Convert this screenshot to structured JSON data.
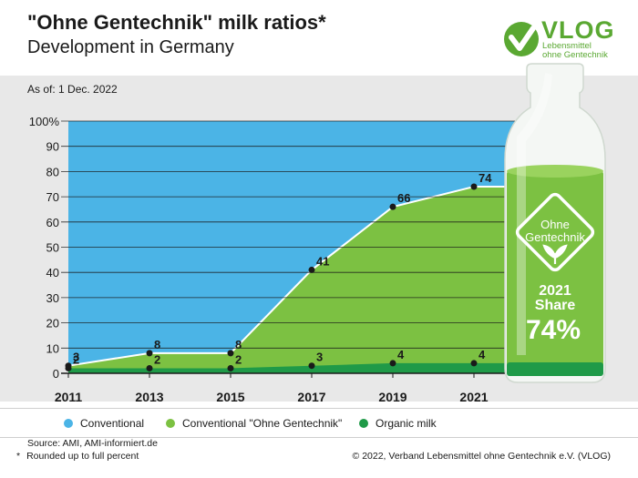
{
  "header": {
    "title": "\"Ohne Gentechnik\" milk ratios*",
    "subtitle": "Development in Germany",
    "as_of": "As of: 1 Dec. 2022"
  },
  "logo": {
    "name": "VLOG",
    "tagline_1": "Lebensmittel",
    "tagline_2": "ohne Gentechnik",
    "color": "#5aa832"
  },
  "bottle": {
    "seal_line_1": "Ohne",
    "seal_line_2": "Gentechnik",
    "year": "2021",
    "share_label": "Share",
    "share_value": "74%"
  },
  "legend": [
    {
      "label": "Conventional",
      "color": "#4bb4e6"
    },
    {
      "label": "Conventional \"Ohne Gentechnik\"",
      "color": "#7cc142"
    },
    {
      "label": "Organic milk",
      "color": "#1f9a48"
    }
  ],
  "footer": {
    "source": "Source: AMI, AMI-informiert.de",
    "note_marker": "*",
    "note": "Rounded up to full percent",
    "copyright": "© 2022, Verband Lebensmittel ohne Gentechnik e.V. (VLOG)"
  },
  "chart_data": {
    "type": "area",
    "x": [
      2011,
      2013,
      2015,
      2017,
      2019,
      2021
    ],
    "series": [
      {
        "name": "Conventional \"Ohne Gentechnik\"",
        "values": [
          3,
          8,
          8,
          41,
          66,
          74
        ],
        "color": "#7cc142"
      },
      {
        "name": "Organic milk",
        "values": [
          2,
          2,
          2,
          3,
          4,
          4
        ],
        "color": "#1f9a48"
      }
    ],
    "y_ticks": [
      "100%",
      "90",
      "80",
      "70",
      "60",
      "50",
      "40",
      "30",
      "20",
      "10",
      "0"
    ],
    "ylim": [
      0,
      100
    ],
    "background_color": "#4bb4e6",
    "grid": true
  }
}
